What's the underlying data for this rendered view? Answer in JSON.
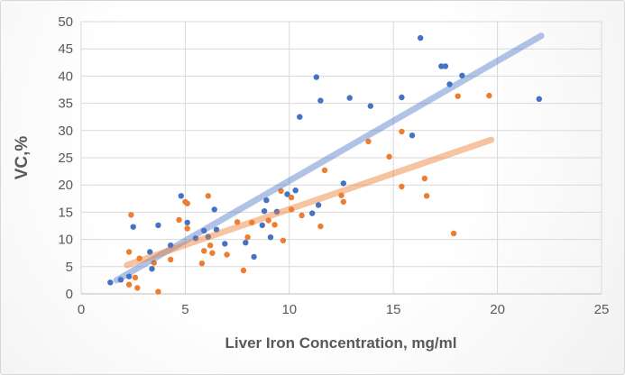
{
  "chart_data": {
    "type": "scatter",
    "title": "",
    "xlabel": "Liver Iron Concentration, mg/ml",
    "ylabel": "VC,%",
    "xlim": [
      0,
      25
    ],
    "ylim": [
      0,
      50
    ],
    "x_ticks": [
      0,
      5,
      10,
      15,
      20,
      25
    ],
    "y_ticks": [
      0,
      5,
      10,
      15,
      20,
      25,
      30,
      35,
      40,
      45,
      50
    ],
    "grid": true,
    "legend_position": "none",
    "style": {
      "gridline_color": "#d9d9d9",
      "axis_line_color": "#bfbfbf",
      "tick_label_color": "#595959",
      "axis_title_color": "#595959",
      "point_radius": 3.2,
      "trendline_width": 7
    },
    "series": [
      {
        "id": "blue-scatter",
        "type": "scatter",
        "color": "#4472C4",
        "points": [
          [
            1.4,
            2.1
          ],
          [
            1.9,
            2.6
          ],
          [
            2.3,
            3.2
          ],
          [
            2.5,
            12.3
          ],
          [
            3.3,
            7.7
          ],
          [
            3.4,
            4.6
          ],
          [
            3.7,
            12.6
          ],
          [
            4.3,
            8.9
          ],
          [
            4.8,
            18.0
          ],
          [
            5.1,
            13.1
          ],
          [
            5.5,
            10.2
          ],
          [
            5.9,
            11.6
          ],
          [
            6.1,
            10.5
          ],
          [
            6.4,
            15.5
          ],
          [
            6.5,
            11.8
          ],
          [
            6.9,
            9.2
          ],
          [
            7.9,
            9.4
          ],
          [
            8.3,
            6.8
          ],
          [
            8.7,
            12.6
          ],
          [
            8.8,
            15.2
          ],
          [
            8.9,
            17.2
          ],
          [
            9.1,
            10.4
          ],
          [
            9.4,
            15.1
          ],
          [
            9.9,
            18.3
          ],
          [
            10.3,
            19.0
          ],
          [
            10.5,
            32.5
          ],
          [
            11.1,
            14.8
          ],
          [
            11.3,
            39.8
          ],
          [
            11.4,
            16.3
          ],
          [
            11.5,
            35.5
          ],
          [
            12.6,
            20.3
          ],
          [
            12.9,
            36.0
          ],
          [
            13.9,
            34.5
          ],
          [
            15.4,
            36.1
          ],
          [
            15.9,
            29.1
          ],
          [
            16.3,
            47.0
          ],
          [
            17.3,
            41.8
          ],
          [
            17.5,
            41.8
          ],
          [
            17.7,
            38.5
          ],
          [
            18.3,
            40.1
          ],
          [
            22.0,
            35.8
          ]
        ]
      },
      {
        "id": "orange-scatter",
        "type": "scatter",
        "color": "#ED7D31",
        "points": [
          [
            2.3,
            1.7
          ],
          [
            2.7,
            1.1
          ],
          [
            3.7,
            0.4
          ],
          [
            2.6,
            3.0
          ],
          [
            2.8,
            6.5
          ],
          [
            2.3,
            7.7
          ],
          [
            2.4,
            14.5
          ],
          [
            3.5,
            5.7
          ],
          [
            4.3,
            6.3
          ],
          [
            4.7,
            13.6
          ],
          [
            5.0,
            16.9
          ],
          [
            5.1,
            16.6
          ],
          [
            5.1,
            12.0
          ],
          [
            5.8,
            5.6
          ],
          [
            5.9,
            7.9
          ],
          [
            6.1,
            18.0
          ],
          [
            6.2,
            8.9
          ],
          [
            6.3,
            7.5
          ],
          [
            7.0,
            7.2
          ],
          [
            7.5,
            13.2
          ],
          [
            7.8,
            4.3
          ],
          [
            8.0,
            10.4
          ],
          [
            8.2,
            13.1
          ],
          [
            9.0,
            13.5
          ],
          [
            9.3,
            12.7
          ],
          [
            9.6,
            18.9
          ],
          [
            9.7,
            9.8
          ],
          [
            10.1,
            17.7
          ],
          [
            10.1,
            15.5
          ],
          [
            10.6,
            14.4
          ],
          [
            11.5,
            12.4
          ],
          [
            11.7,
            22.7
          ],
          [
            12.5,
            18.1
          ],
          [
            12.6,
            16.9
          ],
          [
            13.8,
            28.0
          ],
          [
            14.8,
            25.2
          ],
          [
            15.4,
            29.8
          ],
          [
            15.4,
            19.7
          ],
          [
            16.5,
            21.2
          ],
          [
            16.6,
            18.0
          ],
          [
            17.9,
            11.1
          ],
          [
            18.1,
            36.3
          ],
          [
            19.6,
            36.4
          ]
        ]
      },
      {
        "id": "blue-trendline",
        "type": "trendline",
        "color": "#4472C4",
        "opacity": 0.42,
        "from": [
          1.7,
          2.5
        ],
        "to": [
          22.1,
          47.4
        ]
      },
      {
        "id": "orange-trendline",
        "type": "trendline",
        "color": "#ED7D31",
        "opacity": 0.45,
        "from": [
          2.2,
          5.3
        ],
        "to": [
          19.7,
          28.3
        ]
      }
    ]
  }
}
